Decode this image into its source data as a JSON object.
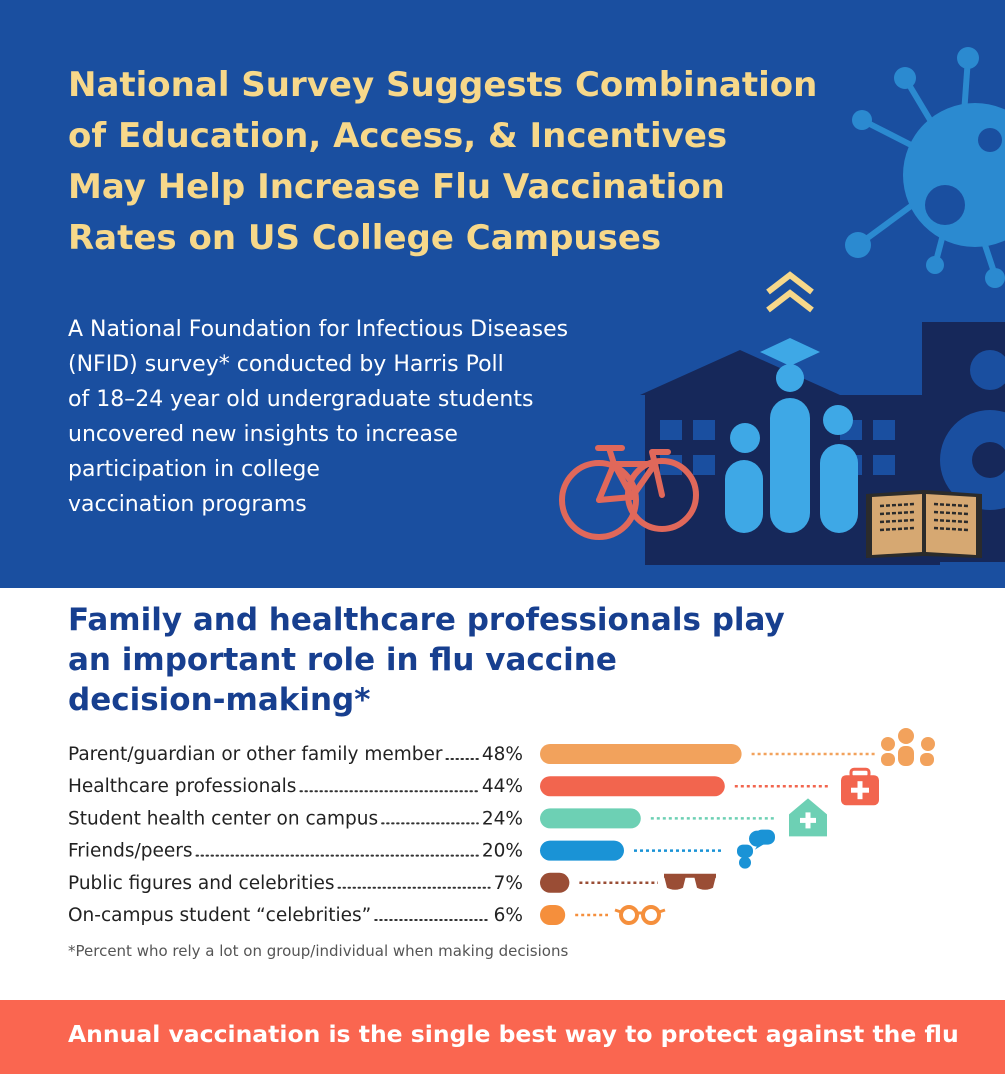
{
  "hero": {
    "title_lines": [
      "National Survey Suggests Combination",
      "of Education, Access, & Incentives",
      "May Help Increase Flu Vaccination",
      "Rates on US College Campuses"
    ],
    "intro_lines": [
      "A National Foundation for Infectious Diseases",
      "(NFID) survey* conducted by Harris Poll",
      "of 18–24 year old undergraduate students",
      "uncovered new insights to increase",
      "participation in college",
      "vaccination programs"
    ]
  },
  "section": {
    "title_lines": [
      "Family and healthcare professionals play",
      "an important role in flu vaccine",
      "decision-making*"
    ],
    "footnote": "*Percent who rely a lot on group/individual when making decisions"
  },
  "chart_data": {
    "type": "bar",
    "orientation": "horizontal",
    "xlim": [
      0,
      50
    ],
    "grid": false,
    "categories": [
      "Parent/guardian or other family member",
      "Healthcare professionals",
      "Student health center on campus",
      "Friends/peers",
      "Public figures and celebrities",
      "On-campus student “celebrities”"
    ],
    "values": [
      48,
      44,
      24,
      20,
      7,
      6
    ],
    "value_labels": [
      "48%",
      "44%",
      "24%",
      "20%",
      "7%",
      "6%"
    ],
    "colors": [
      "#f2a25c",
      "#f2654e",
      "#6dd0b4",
      "#1a93d6",
      "#9a4d35",
      "#f58f3c"
    ],
    "icons": [
      "family-icon",
      "medical-kit-icon",
      "health-center-icon",
      "chat-bubbles-icon",
      "sunglasses-icon",
      "round-glasses-icon"
    ]
  },
  "footer": {
    "text": "Annual vaccination is the single best way to protect against the flu"
  },
  "colors": {
    "hero_bg": "#1a4fa0",
    "title_yellow": "#f7d88a",
    "section_title_blue": "#173f8f",
    "footer_bg": "#fa6650"
  }
}
